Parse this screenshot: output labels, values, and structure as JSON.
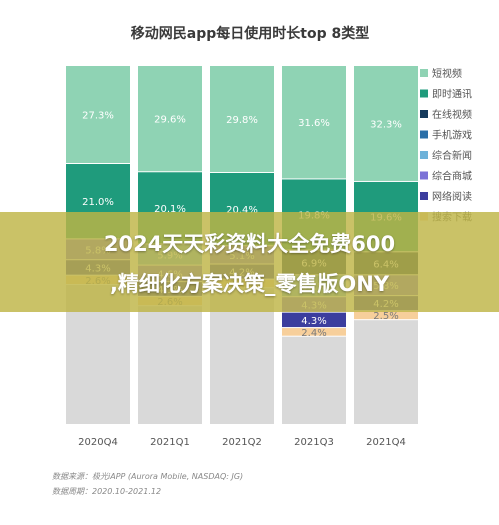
{
  "overlay": {
    "line1": "2024天天彩资料大全免费600",
    "line2": ",精细化方案决策_零售版ONY"
  },
  "source": {
    "line1": "数据来源：极光iAPP (Aurora Mobile, NASDAQ: JG)",
    "line2": "数据周期：2020.10-2021.12"
  },
  "chart_data": {
    "type": "bar",
    "stacked": true,
    "title": "移动网民app每日使用时长top 8类型",
    "categories": [
      "2020Q4",
      "2021Q1",
      "2021Q2",
      "2021Q3",
      "2021Q4"
    ],
    "ylim": [
      0,
      100
    ],
    "legend_position": "right",
    "series": [
      {
        "name": "搜索下载",
        "color": "#f7cf9b",
        "values": [
          2.6,
          2.6,
          2.4,
          2.4,
          2.5
        ]
      },
      {
        "name": "网络阅读",
        "color": "#3b3d9e",
        "values": [
          4.3,
          4.1,
          4.2,
          4.3,
          4.2
        ]
      },
      {
        "name": "综合商城",
        "color": "#7b72d6",
        "values": [
          5.8,
          4.6,
          5.1,
          4.3,
          5.8
        ]
      },
      {
        "name": "综合新闻",
        "color": "#6eb2d9",
        "values": [
          null,
          5.9,
          null,
          6.1,
          null
        ]
      },
      {
        "name": "手机游戏",
        "color": "#2a6fa8",
        "values": [
          null,
          null,
          null,
          null,
          null
        ]
      },
      {
        "name": "在线视频",
        "color": "#153a5c",
        "values": [
          null,
          null,
          null,
          6.9,
          6.4
        ]
      },
      {
        "name": "即时通讯",
        "color": "#1f9b7c",
        "values": [
          21.0,
          20.1,
          20.4,
          19.8,
          19.6
        ]
      },
      {
        "name": "短视频",
        "color": "#8fd3b4",
        "values": [
          27.3,
          29.6,
          29.8,
          31.6,
          32.3
        ]
      }
    ],
    "legend_order": [
      "短视频",
      "即时通讯",
      "在线视频",
      "手机游戏",
      "综合新闻",
      "综合商城",
      "网络阅读",
      "搜索下载"
    ],
    "remainder_color": "#d9d9d9"
  }
}
